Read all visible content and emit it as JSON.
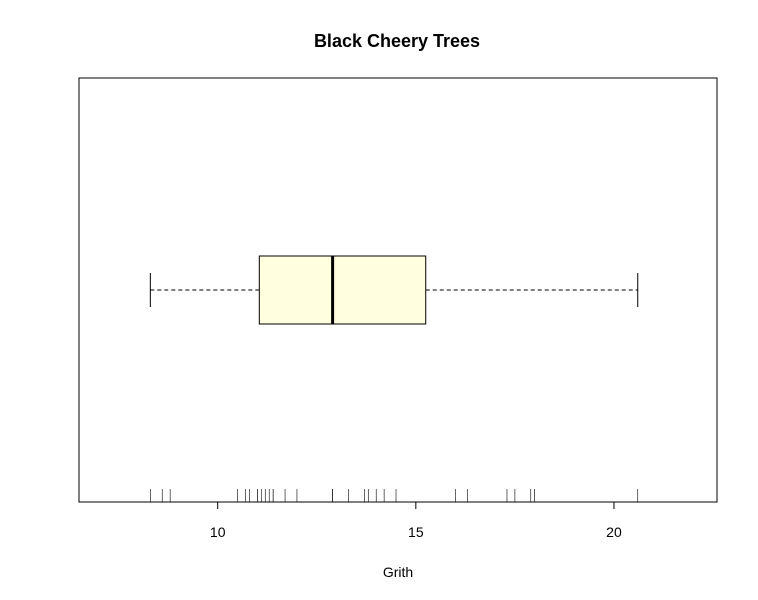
{
  "chart_data": {
    "type": "boxplot",
    "title": "Black Cheery Trees",
    "xlabel": "Grith",
    "ylabel": "",
    "orientation": "horizontal",
    "xlim": [
      6.5,
      22.6
    ],
    "x_ticks": [
      10,
      15,
      20
    ],
    "box": {
      "min": 8.3,
      "q1": 11.05,
      "median": 12.9,
      "q3": 15.25,
      "max": 20.6
    },
    "box_fill": "#ffffe0",
    "whisker_style": "dashed",
    "rug_values": [
      8.3,
      8.6,
      8.8,
      10.5,
      10.7,
      10.8,
      11.0,
      11.0,
      11.1,
      11.2,
      11.3,
      11.4,
      11.4,
      11.7,
      12.0,
      12.9,
      12.9,
      13.3,
      13.7,
      13.8,
      14.0,
      14.2,
      14.5,
      16.0,
      16.3,
      17.3,
      17.5,
      17.9,
      18.0,
      18.0,
      20.6
    ]
  }
}
